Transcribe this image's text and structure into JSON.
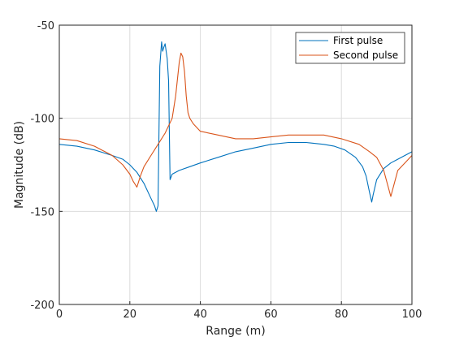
{
  "chart_data": {
    "type": "line",
    "xlabel": "Range (m)",
    "ylabel": "Magnitude (dB)",
    "xlim": [
      0,
      100
    ],
    "ylim": [
      -200,
      -50
    ],
    "xticks": [
      0,
      20,
      40,
      60,
      80,
      100
    ],
    "yticks": [
      -200,
      -150,
      -100,
      -50
    ],
    "xtick_labels": [
      "0",
      "20",
      "40",
      "60",
      "80",
      "100"
    ],
    "ytick_labels": [
      "-200",
      "-150",
      "-100",
      "-50"
    ],
    "grid": true,
    "legend_position": "top-right",
    "series": [
      {
        "name": "First pulse",
        "color": "#0072BD",
        "x": [
          0,
          5,
          10,
          15,
          18,
          20,
          22,
          24,
          26,
          27,
          27.5,
          28,
          28.5,
          29,
          29.3,
          29.6,
          30,
          30.3,
          30.6,
          31,
          31.4,
          32,
          34,
          37,
          40,
          45,
          50,
          55,
          60,
          65,
          70,
          75,
          78,
          81,
          84,
          86,
          87,
          88,
          88.6,
          89,
          90,
          92,
          94,
          96,
          98,
          100
        ],
        "y": [
          -114,
          -115,
          -117,
          -120,
          -122,
          -125,
          -129,
          -135,
          -143,
          -147,
          -150,
          -147,
          -72,
          -59,
          -64,
          -62,
          -60,
          -64,
          -68,
          -80,
          -133,
          -130,
          -128,
          -126,
          -124,
          -121,
          -118,
          -116,
          -114,
          -113,
          -113,
          -114,
          -115,
          -117,
          -121,
          -126,
          -131,
          -140,
          -145,
          -141,
          -133,
          -127,
          -124,
          -122,
          -120,
          -118
        ]
      },
      {
        "name": "Second pulse",
        "color": "#D95319",
        "x": [
          0,
          5,
          10,
          15,
          18,
          20,
          21,
          22,
          23,
          24,
          26,
          28,
          30,
          32,
          33,
          34,
          34.5,
          35,
          35.5,
          36,
          36.5,
          37,
          38,
          40,
          45,
          50,
          55,
          60,
          65,
          70,
          75,
          80,
          85,
          88,
          90,
          92,
          93,
          94,
          95,
          96,
          98,
          100
        ],
        "y": [
          -111,
          -112,
          -115,
          -120,
          -125,
          -130,
          -134,
          -137,
          -131,
          -126,
          -120,
          -114,
          -108,
          -100,
          -88,
          -70,
          -65,
          -67,
          -75,
          -88,
          -97,
          -100,
          -103,
          -107,
          -109,
          -111,
          -111,
          -110,
          -109,
          -109,
          -109,
          -111,
          -114,
          -118,
          -121,
          -128,
          -135,
          -142,
          -135,
          -128,
          -124,
          -120
        ]
      }
    ]
  }
}
